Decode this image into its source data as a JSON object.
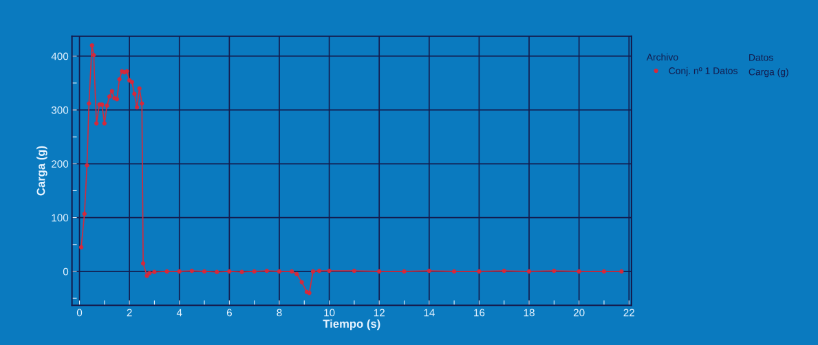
{
  "chart_data": {
    "type": "line",
    "xlabel": "Tiempo (s)",
    "ylabel": "Carga (g)",
    "legend_title": "Archivo",
    "annotations": [
      "Datos",
      "Carga (g)"
    ],
    "xlim": [
      -0.3,
      22.1
    ],
    "ylim": [
      -63,
      437
    ],
    "xticks": [
      0,
      {
        "value": 1,
        "label": null
      },
      2,
      {
        "value": 3,
        "label": null
      },
      4,
      {
        "value": 5,
        "label": null
      },
      6,
      {
        "value": 7,
        "label": null
      },
      8,
      {
        "value": 9,
        "label": null
      },
      10,
      {
        "value": 11,
        "label": null
      },
      12,
      {
        "value": 13,
        "label": null
      },
      14,
      {
        "value": 15,
        "label": null
      },
      16,
      {
        "value": 17,
        "label": null
      },
      18,
      {
        "value": 19,
        "label": null
      },
      20,
      {
        "value": 21,
        "label": null
      },
      22
    ],
    "yticks": [
      {
        "value": -50,
        "label": null
      },
      0,
      {
        "value": 50,
        "label": null
      },
      100,
      {
        "value": 150,
        "label": null
      },
      200,
      {
        "value": 250,
        "label": null
      },
      300,
      {
        "value": 350,
        "label": null
      },
      400
    ],
    "grid": true,
    "legend": "top right",
    "marker": "circle",
    "line_style": "solid",
    "series": [
      {
        "name": "Conj. nº 1 Datos",
        "color": "#d42a3c",
        "x": [
          0.07,
          0.2,
          0.3,
          0.38,
          0.5,
          0.57,
          0.68,
          0.8,
          0.9,
          1.0,
          1.1,
          1.2,
          1.3,
          1.4,
          1.5,
          1.6,
          1.7,
          1.8,
          1.9,
          2.0,
          2.1,
          2.2,
          2.3,
          2.4,
          2.5,
          2.55,
          2.7,
          2.8,
          3.0,
          3.5,
          4.0,
          4.5,
          5.0,
          5.5,
          6.0,
          6.5,
          7.0,
          7.5,
          8.0,
          8.5,
          8.7,
          8.9,
          9.1,
          9.2,
          9.35,
          9.6,
          10.0,
          11.0,
          12.0,
          13.0,
          14.0,
          15.0,
          16.0,
          17.0,
          18.0,
          19.0,
          20.0,
          21.0,
          21.7
        ],
        "values": [
          45,
          107,
          197,
          312,
          420,
          402,
          275,
          310,
          310,
          275,
          308,
          325,
          335,
          322,
          320,
          357,
          372,
          370,
          372,
          355,
          352,
          330,
          305,
          340,
          312,
          15,
          -8,
          -3,
          -1,
          0,
          0,
          1,
          0,
          -1,
          0,
          -1,
          0,
          1,
          0,
          0,
          -5,
          -20,
          -38,
          -40,
          0,
          1,
          1,
          1,
          0,
          0,
          1,
          0,
          0,
          1,
          0,
          1,
          0,
          0,
          0
        ]
      }
    ]
  }
}
